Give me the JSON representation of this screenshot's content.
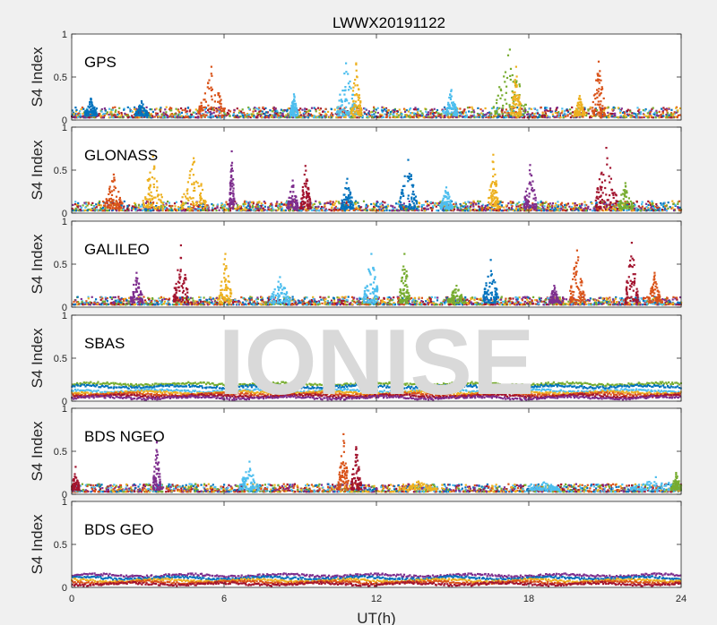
{
  "figure": {
    "title": "LWWX20191122",
    "xlabel": "UT(h)",
    "watermark": "IONISE"
  },
  "chart_data": {
    "type": "scatter",
    "title": "LWWX20191122",
    "xlabel": "UT(h)",
    "ylabel": "S4 Index",
    "xlim": [
      0,
      24
    ],
    "ylim": [
      0,
      1
    ],
    "xticks": [
      0,
      6,
      12,
      18,
      24
    ],
    "xtick_labels": [
      "0",
      "6",
      "12",
      "18",
      "24"
    ],
    "yticks": [
      0,
      0.5,
      1
    ],
    "ytick_labels": [
      "0",
      "0.5",
      "1"
    ],
    "grid": false,
    "colors": [
      "#0072bd",
      "#d95319",
      "#edb120",
      "#7e2f8e",
      "#77ac30",
      "#4dbeee",
      "#a2142f"
    ],
    "panels": [
      {
        "constellation": "GPS",
        "baseline": [
          0.03,
          0.15
        ],
        "bursts": [
          [
            5.0,
            6.0,
            0.62,
            1
          ],
          [
            10.4,
            11.2,
            0.66,
            5
          ],
          [
            11.0,
            11.4,
            0.66,
            2
          ],
          [
            8.6,
            8.9,
            0.3,
            5
          ],
          [
            14.7,
            15.2,
            0.35,
            5
          ],
          [
            16.6,
            17.9,
            0.82,
            4
          ],
          [
            17.3,
            17.7,
            0.62,
            2
          ],
          [
            19.8,
            20.2,
            0.28,
            2
          ],
          [
            20.5,
            21.0,
            0.68,
            1
          ],
          [
            2.5,
            3.0,
            0.22,
            0
          ],
          [
            0.5,
            1.0,
            0.25,
            0
          ]
        ]
      },
      {
        "constellation": "GLONASS",
        "baseline": [
          0.03,
          0.14
        ],
        "bursts": [
          [
            1.3,
            2.0,
            0.45,
            1
          ],
          [
            2.8,
            3.6,
            0.66,
            2
          ],
          [
            4.3,
            5.3,
            0.64,
            2
          ],
          [
            6.2,
            6.4,
            0.72,
            3
          ],
          [
            8.5,
            8.9,
            0.38,
            3
          ],
          [
            9.0,
            9.4,
            0.55,
            6
          ],
          [
            10.6,
            11.1,
            0.4,
            0
          ],
          [
            12.9,
            13.6,
            0.62,
            0
          ],
          [
            14.5,
            15.0,
            0.3,
            5
          ],
          [
            16.4,
            16.8,
            0.68,
            2
          ],
          [
            17.8,
            18.3,
            0.56,
            3
          ],
          [
            20.6,
            21.5,
            0.76,
            6
          ],
          [
            21.5,
            22.1,
            0.35,
            4
          ]
        ]
      },
      {
        "constellation": "GALILEO",
        "baseline": [
          0.03,
          0.12
        ],
        "bursts": [
          [
            2.3,
            2.8,
            0.4,
            3
          ],
          [
            4.0,
            4.6,
            0.72,
            6
          ],
          [
            5.8,
            6.3,
            0.62,
            2
          ],
          [
            7.8,
            8.6,
            0.35,
            5
          ],
          [
            11.5,
            12.1,
            0.62,
            5
          ],
          [
            12.9,
            13.3,
            0.62,
            4
          ],
          [
            14.8,
            15.5,
            0.25,
            4
          ],
          [
            16.2,
            16.8,
            0.55,
            0
          ],
          [
            18.8,
            19.2,
            0.25,
            3
          ],
          [
            19.6,
            20.2,
            0.66,
            1
          ],
          [
            21.8,
            22.3,
            0.75,
            6
          ],
          [
            22.7,
            23.2,
            0.4,
            1
          ]
        ]
      },
      {
        "constellation": "SBAS",
        "bands": [
          [
            0.2,
            4
          ],
          [
            0.17,
            0
          ],
          [
            0.12,
            5
          ],
          [
            0.1,
            2
          ],
          [
            0.08,
            1
          ],
          [
            0.06,
            6
          ],
          [
            0.04,
            3
          ]
        ]
      },
      {
        "constellation": "BDS NGEO",
        "baseline": [
          0.03,
          0.12
        ],
        "bursts": [
          [
            0.0,
            0.3,
            0.32,
            6
          ],
          [
            3.2,
            3.5,
            0.62,
            3
          ],
          [
            6.6,
            7.4,
            0.38,
            5
          ],
          [
            10.5,
            10.9,
            0.7,
            1
          ],
          [
            11.0,
            11.4,
            0.55,
            6
          ],
          [
            12.9,
            14.4,
            0.15,
            2
          ],
          [
            18.0,
            19.2,
            0.14,
            5
          ],
          [
            22.0,
            24.0,
            0.2,
            5
          ],
          [
            23.6,
            24.0,
            0.25,
            4
          ]
        ]
      },
      {
        "constellation": "BDS GEO",
        "bands": [
          [
            0.14,
            3
          ],
          [
            0.11,
            0
          ],
          [
            0.08,
            2
          ],
          [
            0.06,
            1
          ],
          [
            0.04,
            6
          ]
        ]
      }
    ]
  }
}
